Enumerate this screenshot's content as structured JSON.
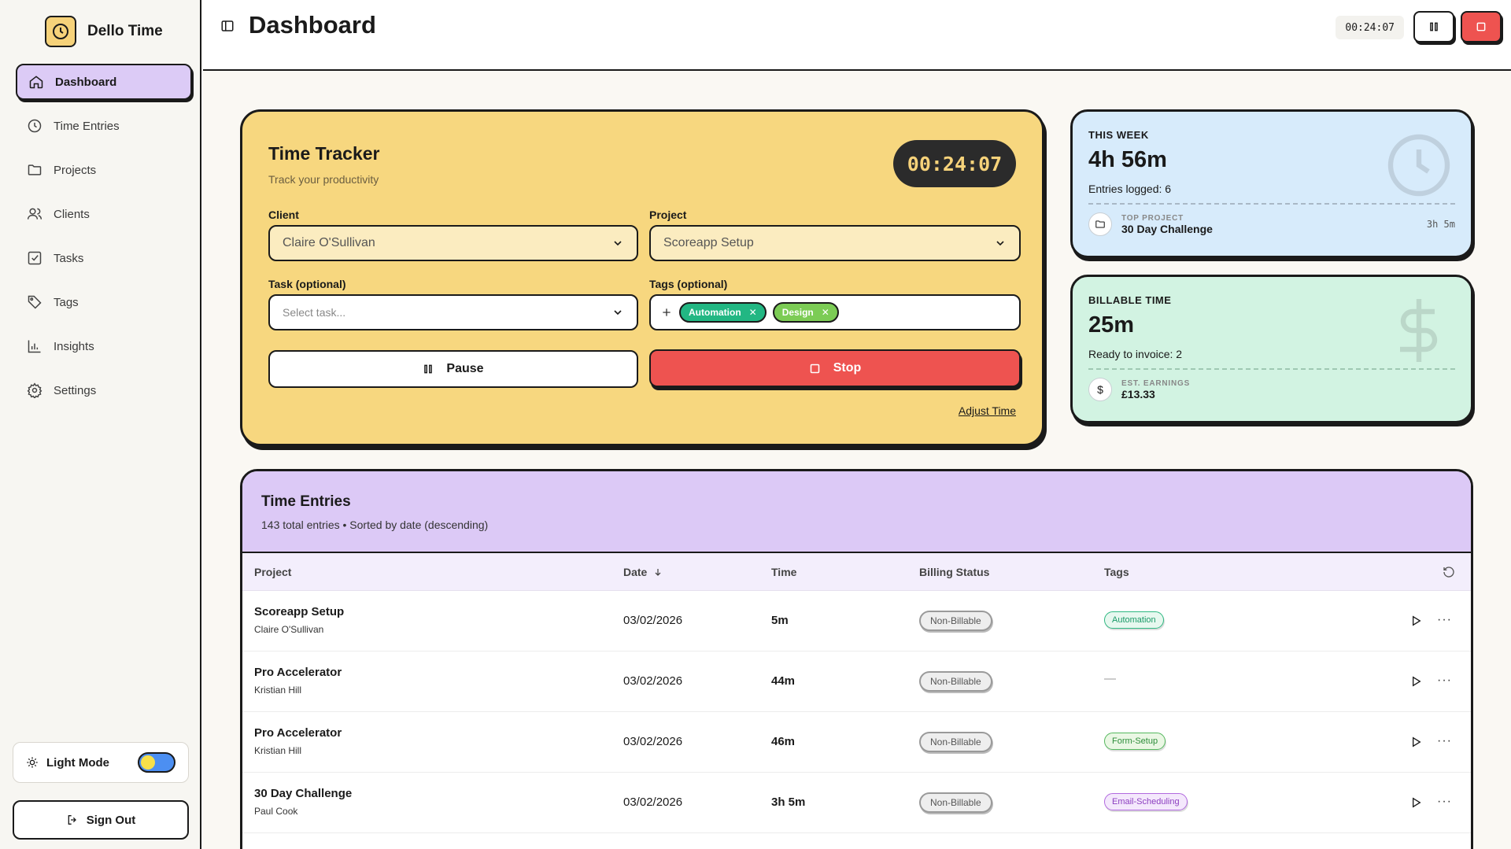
{
  "brand": {
    "name": "Dello Time"
  },
  "nav": [
    {
      "label": "Dashboard",
      "icon": "home-icon",
      "active": true
    },
    {
      "label": "Time Entries",
      "icon": "clock-icon"
    },
    {
      "label": "Projects",
      "icon": "folder-icon"
    },
    {
      "label": "Clients",
      "icon": "users-icon"
    },
    {
      "label": "Tasks",
      "icon": "checkbox-icon"
    },
    {
      "label": "Tags",
      "icon": "tag-icon"
    },
    {
      "label": "Insights",
      "icon": "bar-chart-icon"
    },
    {
      "label": "Settings",
      "icon": "gear-icon"
    }
  ],
  "theme": {
    "label": "Light Mode"
  },
  "signout": {
    "label": "Sign Out"
  },
  "header": {
    "title": "Dashboard",
    "timer": "00:24:07"
  },
  "tracker": {
    "title": "Time Tracker",
    "subtitle": "Track your productivity",
    "timer": "00:24:07",
    "client_label": "Client",
    "client_value": "Claire O'Sullivan",
    "project_label": "Project",
    "project_value": "Scoreapp Setup",
    "task_label": "Task (optional)",
    "task_placeholder": "Select task...",
    "tags_label": "Tags (optional)",
    "tags": [
      "Automation",
      "Design"
    ],
    "pause_label": "Pause",
    "stop_label": "Stop",
    "adjust_label": "Adjust Time"
  },
  "week": {
    "label": "THIS WEEK",
    "value": "4h 56m",
    "note": "Entries logged: 6",
    "foot_small": "TOP PROJECT",
    "foot_big": "30 Day Challenge",
    "foot_right": "3h 5m"
  },
  "billable": {
    "label": "BILLABLE TIME",
    "value": "25m",
    "note": "Ready to invoice: 2",
    "foot_small": "EST. EARNINGS",
    "foot_big": "£13.33",
    "foot_icon": "$"
  },
  "entries": {
    "title": "Time Entries",
    "subtitle": "143 total entries • Sorted by date (descending)",
    "columns": [
      "Project",
      "Date",
      "Time",
      "Billing Status",
      "Tags"
    ],
    "rows": [
      {
        "project": "Scoreapp Setup",
        "client": "Claire O'Sullivan",
        "date": "03/02/2026",
        "time": "5m",
        "billing": "Non-Billable",
        "tag": "Automation",
        "tag_style": "t-green"
      },
      {
        "project": "Pro Accelerator",
        "client": "Kristian Hill",
        "date": "03/02/2026",
        "time": "44m",
        "billing": "Non-Billable",
        "tag": "—",
        "tag_style": "none"
      },
      {
        "project": "Pro Accelerator",
        "client": "Kristian Hill",
        "date": "03/02/2026",
        "time": "46m",
        "billing": "Non-Billable",
        "tag": "Form-Setup",
        "tag_style": "t-lime"
      },
      {
        "project": "30 Day Challenge",
        "client": "Paul Cook",
        "date": "03/02/2026",
        "time": "3h 5m",
        "billing": "Non-Billable",
        "tag": "Email-Scheduling",
        "tag_style": "t-purple"
      }
    ]
  },
  "colors": {
    "accent_yellow": "#f7d77f",
    "accent_purple": "#dcc9f6",
    "stop_red": "#ee5350",
    "week_blue": "#d7ebfb",
    "billable_green": "#d2f3e2"
  }
}
